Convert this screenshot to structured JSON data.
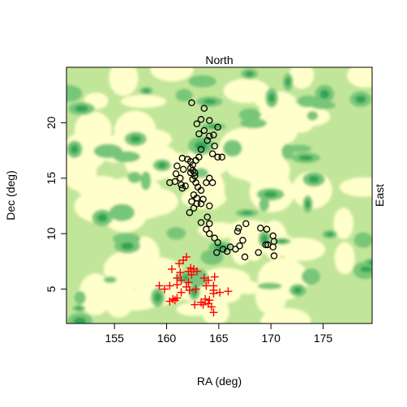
{
  "chart_data": {
    "type": "scatter",
    "title": "",
    "xlabel": "RA (deg)",
    "ylabel": "Dec (deg)",
    "top_label": "North",
    "right_label": "East",
    "xlim": [
      150.4,
      179.7
    ],
    "ylim": [
      1.9,
      25.0
    ],
    "xticks": [
      155,
      160,
      165,
      170,
      175
    ],
    "yticks": [
      5,
      10,
      15,
      20
    ],
    "grid": false,
    "legend": "none",
    "background": {
      "kind": "filled-density-contour",
      "levels": [
        "#ffffcc",
        "#c2e699",
        "#78c679",
        "#31a354"
      ]
    },
    "series": [
      {
        "marker": "open-circle",
        "color": "#000000",
        "points": [
          [
            162.4,
            21.8
          ],
          [
            163.6,
            21.3
          ],
          [
            163.3,
            20.3
          ],
          [
            162.9,
            19.9
          ],
          [
            164.1,
            20.2
          ],
          [
            164.9,
            19.6
          ],
          [
            163.6,
            19.3
          ],
          [
            163.1,
            19.0
          ],
          [
            164.1,
            18.8
          ],
          [
            164.5,
            18.9
          ],
          [
            163.9,
            18.4
          ],
          [
            164.6,
            17.9
          ],
          [
            163.3,
            17.6
          ],
          [
            164.4,
            17.2
          ],
          [
            164.9,
            16.9
          ],
          [
            165.3,
            16.9
          ],
          [
            161.5,
            16.8
          ],
          [
            162.0,
            16.7
          ],
          [
            162.3,
            16.5
          ],
          [
            162.8,
            16.6
          ],
          [
            163.1,
            16.9
          ],
          [
            162.5,
            16.2
          ],
          [
            162.3,
            15.9
          ],
          [
            162.5,
            15.7
          ],
          [
            162.7,
            15.5
          ],
          [
            162.3,
            15.5
          ],
          [
            161.6,
            15.8
          ],
          [
            161.0,
            16.1
          ],
          [
            160.9,
            15.4
          ],
          [
            161.3,
            15.0
          ],
          [
            160.8,
            14.7
          ],
          [
            160.3,
            14.6
          ],
          [
            161.4,
            14.4
          ],
          [
            161.8,
            14.3
          ],
          [
            161.5,
            14.1
          ],
          [
            162.7,
            15.2
          ],
          [
            162.5,
            14.9
          ],
          [
            162.8,
            14.6
          ],
          [
            163.0,
            14.2
          ],
          [
            163.3,
            13.9
          ],
          [
            162.6,
            13.5
          ],
          [
            162.9,
            13.2
          ],
          [
            162.4,
            12.9
          ],
          [
            162.9,
            12.7
          ],
          [
            162.6,
            12.3
          ],
          [
            162.2,
            11.9
          ],
          [
            164.1,
            15.0
          ],
          [
            164.4,
            14.6
          ],
          [
            163.8,
            14.6
          ],
          [
            163.5,
            13.1
          ],
          [
            163.3,
            12.7
          ],
          [
            164.1,
            12.5
          ],
          [
            163.9,
            11.5
          ],
          [
            163.3,
            11.0
          ],
          [
            164.1,
            10.9
          ],
          [
            163.8,
            10.4
          ],
          [
            164.1,
            10.0
          ],
          [
            164.6,
            9.6
          ],
          [
            164.8,
            8.3
          ],
          [
            165.4,
            8.6
          ],
          [
            165.8,
            8.4
          ],
          [
            166.1,
            8.8
          ],
          [
            166.6,
            8.6
          ],
          [
            167.0,
            8.9
          ],
          [
            167.3,
            9.4
          ],
          [
            166.8,
            10.2
          ],
          [
            166.9,
            10.5
          ],
          [
            167.6,
            10.9
          ],
          [
            167.5,
            7.9
          ],
          [
            168.8,
            8.3
          ],
          [
            169.0,
            10.5
          ],
          [
            169.6,
            10.4
          ],
          [
            170.2,
            9.8
          ],
          [
            170.3,
            9.3
          ],
          [
            169.7,
            9.0
          ],
          [
            169.5,
            9.0
          ],
          [
            170.2,
            8.8
          ],
          [
            170.3,
            8.0
          ],
          [
            164.9,
            9.2
          ]
        ]
      },
      {
        "marker": "plus",
        "color": "#ff0000",
        "points": [
          [
            160.5,
            6.8
          ],
          [
            161.2,
            7.3
          ],
          [
            161.6,
            7.6
          ],
          [
            161.9,
            7.9
          ],
          [
            161.3,
            6.5
          ],
          [
            161.0,
            6.0
          ],
          [
            161.4,
            5.8
          ],
          [
            161.0,
            5.4
          ],
          [
            161.9,
            5.2
          ],
          [
            162.1,
            5.6
          ],
          [
            162.4,
            6.3
          ],
          [
            162.6,
            6.8
          ],
          [
            162.1,
            6.6
          ],
          [
            162.3,
            6.9
          ],
          [
            162.9,
            6.6
          ],
          [
            161.4,
            4.7
          ],
          [
            160.3,
            5.3
          ],
          [
            159.3,
            5.3
          ],
          [
            159.8,
            5.0
          ],
          [
            160.6,
            4.1
          ],
          [
            160.3,
            3.9
          ],
          [
            160.8,
            4.0
          ],
          [
            161.0,
            4.2
          ],
          [
            162.2,
            4.9
          ],
          [
            162.8,
            5.0
          ],
          [
            163.6,
            6.0
          ],
          [
            164.0,
            5.8
          ],
          [
            164.6,
            6.1
          ],
          [
            163.8,
            5.3
          ],
          [
            164.5,
            5.3
          ],
          [
            164.5,
            4.9
          ],
          [
            164.5,
            4.6
          ],
          [
            165.1,
            4.7
          ],
          [
            165.9,
            4.8
          ],
          [
            163.3,
            3.8
          ],
          [
            163.5,
            3.6
          ],
          [
            164.0,
            3.7
          ],
          [
            164.1,
            4.0
          ],
          [
            164.3,
            3.4
          ],
          [
            163.7,
            4.1
          ],
          [
            162.7,
            3.6
          ],
          [
            164.5,
            2.9
          ]
        ]
      }
    ]
  }
}
